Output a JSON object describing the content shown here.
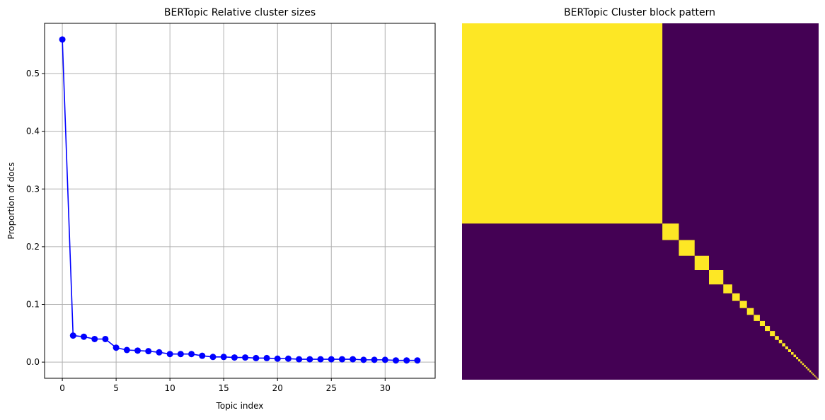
{
  "chart_data": [
    {
      "type": "line",
      "title": "BERTopic Relative cluster sizes",
      "xlabel": "Topic index",
      "ylabel": "Proportion of docs",
      "xlim": [
        -1.65,
        34.65
      ],
      "ylim": [
        -0.028,
        0.587
      ],
      "xticks": [
        0,
        5,
        10,
        15,
        20,
        25,
        30
      ],
      "yticks": [
        0.0,
        0.1,
        0.2,
        0.3,
        0.4,
        0.5
      ],
      "xtick_labels": [
        "0",
        "5",
        "10",
        "15",
        "20",
        "25",
        "30"
      ],
      "ytick_labels": [
        "0.0",
        "0.1",
        "0.2",
        "0.3",
        "0.4",
        "0.5"
      ],
      "grid": true,
      "marker": "circle",
      "color": "#0000ff",
      "x": [
        0,
        1,
        2,
        3,
        4,
        5,
        6,
        7,
        8,
        9,
        10,
        11,
        12,
        13,
        14,
        15,
        16,
        17,
        18,
        19,
        20,
        21,
        22,
        23,
        24,
        25,
        26,
        27,
        28,
        29,
        30,
        31,
        32,
        33
      ],
      "values": [
        0.559,
        0.046,
        0.044,
        0.04,
        0.04,
        0.025,
        0.021,
        0.02,
        0.019,
        0.017,
        0.014,
        0.014,
        0.014,
        0.011,
        0.009,
        0.009,
        0.008,
        0.008,
        0.007,
        0.007,
        0.006,
        0.006,
        0.005,
        0.005,
        0.005,
        0.005,
        0.005,
        0.005,
        0.004,
        0.004,
        0.004,
        0.003,
        0.003,
        0.003
      ]
    },
    {
      "type": "heatmap",
      "title": "BERTopic Cluster block pattern",
      "colormap": "viridis",
      "colors": {
        "in_cluster": "#fde725",
        "out_cluster": "#440154"
      },
      "axes_visible": false,
      "note_values": "Binary co-membership matrix; block i spans the documents of cluster i, sized by relative cluster size",
      "clusters": 34
    }
  ],
  "colors": {
    "line": "#0000ff",
    "grid": "#b0b0b0",
    "in": "#fde725",
    "out": "#440154"
  }
}
